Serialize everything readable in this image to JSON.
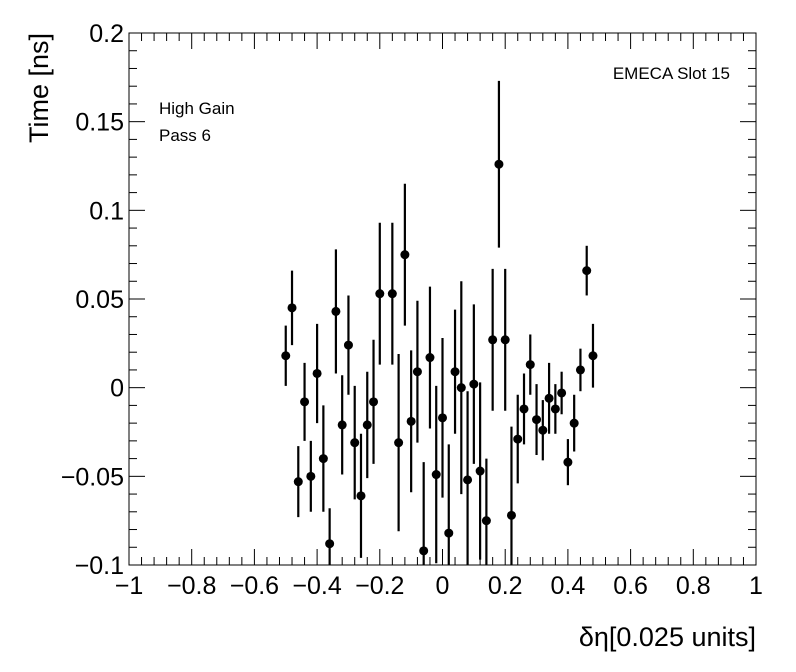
{
  "chart_data": {
    "type": "scatter",
    "xlabel": "δη[0.025 units]",
    "ylabel": "Time [ns]",
    "xlim": [
      -1,
      1
    ],
    "ylim": [
      -0.1,
      0.2
    ],
    "x_ticks": [
      "−1",
      "−0.8",
      "−0.6",
      "−0.4",
      "−0.2",
      "0",
      "0.2",
      "0.4",
      "0.6",
      "0.8",
      "1"
    ],
    "x_tick_values": [
      -1,
      -0.8,
      -0.6,
      -0.4,
      -0.2,
      0,
      0.2,
      0.4,
      0.6,
      0.8,
      1
    ],
    "y_ticks": [
      "−0.1",
      "−0.05",
      "0",
      "0.05",
      "0.1",
      "0.15",
      "0.2"
    ],
    "y_tick_values": [
      -0.1,
      -0.05,
      0,
      0.05,
      0.1,
      0.15,
      0.2
    ],
    "annotations": {
      "gain": "High Gain",
      "pass": "Pass 6",
      "slot": "EMECA Slot 15"
    },
    "points": [
      {
        "x": -0.5,
        "y": 0.018,
        "err": 0.017
      },
      {
        "x": -0.48,
        "y": 0.045,
        "err": 0.021
      },
      {
        "x": -0.46,
        "y": -0.053,
        "err": 0.02
      },
      {
        "x": -0.44,
        "y": -0.008,
        "err": 0.022
      },
      {
        "x": -0.42,
        "y": -0.05,
        "err": 0.02
      },
      {
        "x": -0.4,
        "y": 0.008,
        "err": 0.028
      },
      {
        "x": -0.38,
        "y": -0.04,
        "err": 0.03
      },
      {
        "x": -0.36,
        "y": -0.088,
        "err": 0.02
      },
      {
        "x": -0.34,
        "y": 0.043,
        "err": 0.035
      },
      {
        "x": -0.32,
        "y": -0.021,
        "err": 0.028
      },
      {
        "x": -0.3,
        "y": 0.024,
        "err": 0.028
      },
      {
        "x": -0.28,
        "y": -0.031,
        "err": 0.032
      },
      {
        "x": -0.26,
        "y": -0.061,
        "err": 0.035
      },
      {
        "x": -0.24,
        "y": -0.021,
        "err": 0.03
      },
      {
        "x": -0.22,
        "y": -0.008,
        "err": 0.035
      },
      {
        "x": -0.2,
        "y": 0.053,
        "err": 0.04
      },
      {
        "x": -0.16,
        "y": 0.053,
        "err": 0.04
      },
      {
        "x": -0.14,
        "y": -0.031,
        "err": 0.05
      },
      {
        "x": -0.12,
        "y": 0.075,
        "err": 0.04
      },
      {
        "x": -0.1,
        "y": -0.019,
        "err": 0.04
      },
      {
        "x": -0.08,
        "y": 0.009,
        "err": 0.04
      },
      {
        "x": -0.06,
        "y": -0.092,
        "err": 0.05
      },
      {
        "x": -0.04,
        "y": 0.017,
        "err": 0.04
      },
      {
        "x": -0.02,
        "y": -0.049,
        "err": 0.05
      },
      {
        "x": 0.0,
        "y": -0.017,
        "err": 0.045
      },
      {
        "x": 0.02,
        "y": -0.082,
        "err": 0.05
      },
      {
        "x": 0.04,
        "y": 0.009,
        "err": 0.035
      },
      {
        "x": 0.06,
        "y": 0.0,
        "err": 0.06
      },
      {
        "x": 0.08,
        "y": -0.052,
        "err": 0.05
      },
      {
        "x": 0.1,
        "y": 0.002,
        "err": 0.045
      },
      {
        "x": 0.12,
        "y": -0.047,
        "err": 0.05
      },
      {
        "x": 0.14,
        "y": -0.075,
        "err": 0.035
      },
      {
        "x": 0.16,
        "y": 0.027,
        "err": 0.04
      },
      {
        "x": 0.18,
        "y": 0.126,
        "err": 0.047
      },
      {
        "x": 0.2,
        "y": 0.027,
        "err": 0.04
      },
      {
        "x": 0.22,
        "y": -0.072,
        "err": 0.05
      },
      {
        "x": 0.24,
        "y": -0.029,
        "err": 0.025
      },
      {
        "x": 0.26,
        "y": -0.012,
        "err": 0.02
      },
      {
        "x": 0.28,
        "y": 0.013,
        "err": 0.017
      },
      {
        "x": 0.3,
        "y": -0.018,
        "err": 0.02
      },
      {
        "x": 0.32,
        "y": -0.024,
        "err": 0.017
      },
      {
        "x": 0.34,
        "y": -0.006,
        "err": 0.02
      },
      {
        "x": 0.36,
        "y": -0.012,
        "err": 0.014
      },
      {
        "x": 0.38,
        "y": -0.003,
        "err": 0.012
      },
      {
        "x": 0.4,
        "y": -0.042,
        "err": 0.013
      },
      {
        "x": 0.42,
        "y": -0.02,
        "err": 0.016
      },
      {
        "x": 0.44,
        "y": 0.01,
        "err": 0.012
      },
      {
        "x": 0.46,
        "y": 0.066,
        "err": 0.014
      },
      {
        "x": 0.48,
        "y": 0.018,
        "err": 0.018
      }
    ]
  }
}
